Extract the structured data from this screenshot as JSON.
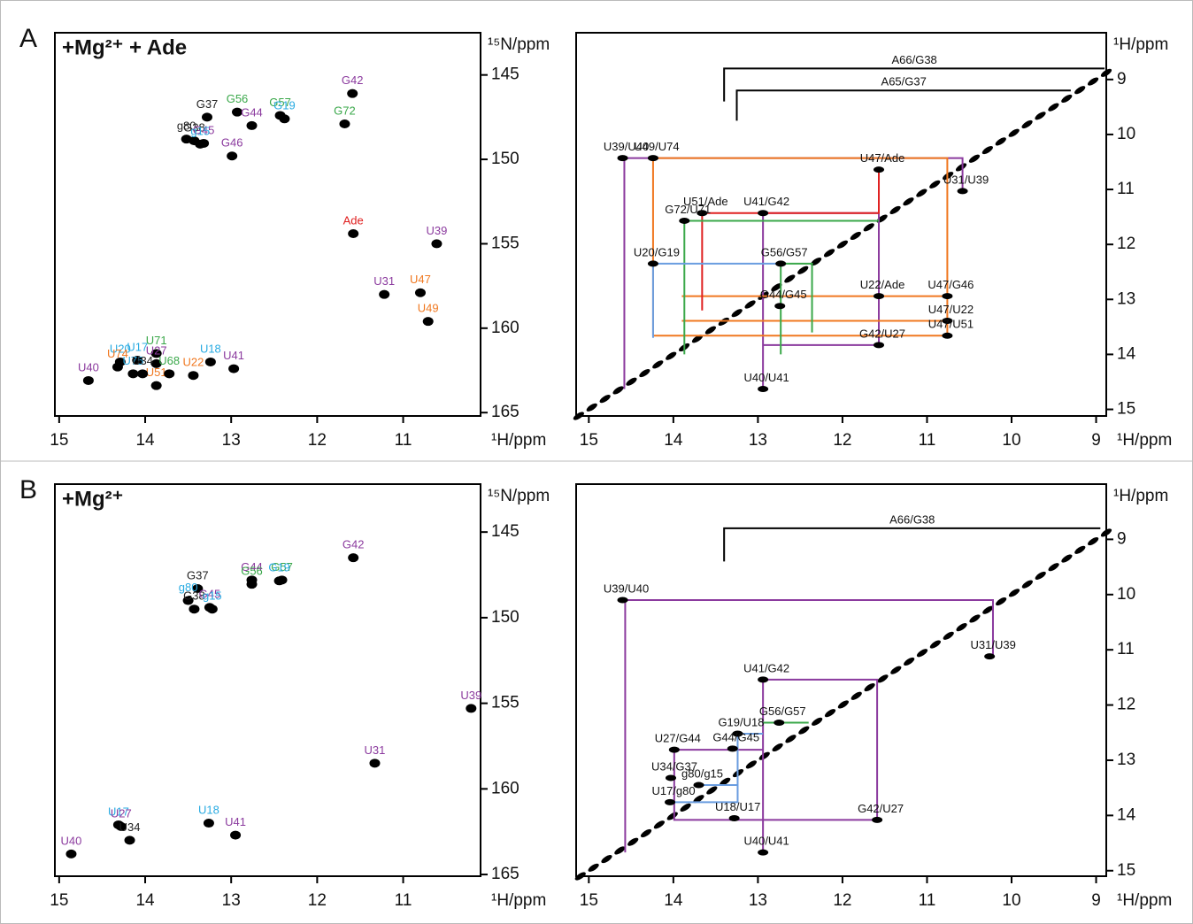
{
  "chart_data": [
    {
      "type": "hsqc",
      "panel": "A",
      "title": "+Mg²⁺ + Ade",
      "xlabel": "¹H/ppm",
      "ylabel": "¹⁵N/ppm",
      "xlim": [
        15.05,
        10.1
      ],
      "ylim": [
        142.5,
        165.2
      ],
      "xticks": [
        15,
        14,
        13,
        12,
        11
      ],
      "yticks": [
        145,
        150,
        155,
        160,
        165
      ],
      "peaks": [
        {
          "label": "G42",
          "color": "#8b3a9e",
          "x": 11.59,
          "y": 146.1
        },
        {
          "label": "G72",
          "color": "#3aa84a",
          "x": 11.68,
          "y": 147.9
        },
        {
          "label": "G56",
          "color": "#3aa84a",
          "x": 12.93,
          "y": 147.2
        },
        {
          "label": "G57",
          "color": "#3aa84a",
          "x": 12.43,
          "y": 147.4
        },
        {
          "label": "G44",
          "color": "#8b3a9e",
          "x": 12.76,
          "y": 148.0
        },
        {
          "label": "G19",
          "color": "#29abe2",
          "x": 12.38,
          "y": 147.6
        },
        {
          "label": "G37",
          "color": "#222222",
          "x": 13.28,
          "y": 147.5
        },
        {
          "label": "g80",
          "color": "#222222",
          "x": 13.52,
          "y": 148.8
        },
        {
          "label": "G38",
          "color": "#222222",
          "x": 13.43,
          "y": 148.9
        },
        {
          "label": "G45",
          "color": "#8b3a9e",
          "x": 13.32,
          "y": 149.05
        },
        {
          "label": "g15",
          "color": "#29abe2",
          "x": 13.36,
          "y": 149.1
        },
        {
          "label": "G46",
          "color": "#8b3a9e",
          "x": 12.99,
          "y": 149.8
        },
        {
          "label": "Ade",
          "color": "#e02020",
          "x": 11.58,
          "y": 154.4
        },
        {
          "label": "U39",
          "color": "#8b3a9e",
          "x": 10.61,
          "y": 155.0
        },
        {
          "label": "U31",
          "color": "#8b3a9e",
          "x": 11.22,
          "y": 158.0
        },
        {
          "label": "U47",
          "color": "#f07820",
          "x": 10.8,
          "y": 157.9
        },
        {
          "label": "U49",
          "color": "#f07820",
          "x": 10.71,
          "y": 159.6
        },
        {
          "label": "U20",
          "color": "#29abe2",
          "x": 14.29,
          "y": 162.0
        },
        {
          "label": "U17",
          "color": "#29abe2",
          "x": 14.09,
          "y": 161.9
        },
        {
          "label": "U71",
          "color": "#3aa84a",
          "x": 13.87,
          "y": 161.5
        },
        {
          "label": "U18",
          "color": "#29abe2",
          "x": 13.24,
          "y": 162.0
        },
        {
          "label": "U41",
          "color": "#8b3a9e",
          "x": 12.97,
          "y": 162.4
        },
        {
          "label": "U27",
          "color": "#8b3a9e",
          "x": 13.87,
          "y": 162.1
        },
        {
          "label": "U74",
          "color": "#f07820",
          "x": 14.32,
          "y": 162.3
        },
        {
          "label": "U75",
          "color": "#29abe2",
          "x": 14.14,
          "y": 162.7
        },
        {
          "label": "U51",
          "color": "#f07820",
          "x": 13.87,
          "y": 163.4
        },
        {
          "label": "U22",
          "color": "#f07820",
          "x": 13.44,
          "y": 162.8
        },
        {
          "label": "U34",
          "color": "#222222",
          "x": 14.03,
          "y": 162.7
        },
        {
          "label": "U68",
          "color": "#3aa84a",
          "x": 13.72,
          "y": 162.7
        },
        {
          "label": "U40",
          "color": "#8b3a9e",
          "x": 14.66,
          "y": 163.1
        }
      ]
    },
    {
      "type": "noesy",
      "xlabel": "¹H/ppm",
      "ylabel": "¹H/ppm",
      "xlim": [
        15.15,
        8.88
      ],
      "ylim": [
        8.15,
        15.12
      ],
      "xticks": [
        15,
        14,
        13,
        12,
        11,
        10,
        9
      ],
      "yticks": [
        9,
        10,
        11,
        12,
        13,
        14,
        15
      ],
      "walks": [
        {
          "name": "A66/G38",
          "color": "#000000",
          "x": [
            13.4,
            13.4,
            8.9
          ],
          "y": [
            9.4,
            8.8,
            8.8
          ]
        },
        {
          "name": "A65/G37",
          "color": "#000000",
          "x": [
            13.25,
            13.25,
            9.3
          ],
          "y": [
            9.75,
            9.2,
            9.2
          ]
        },
        {
          "color": "#8b3a9e",
          "x": [
            14.58,
            14.58,
            10.58,
            10.58
          ],
          "y": [
            14.63,
            10.43,
            10.43,
            11.03
          ]
        },
        {
          "color": "#8b3a9e",
          "x": [
            12.94,
            12.94,
            11.57,
            11.57,
            12.94
          ],
          "y": [
            14.63,
            11.43,
            11.43,
            13.83,
            13.83
          ]
        },
        {
          "color": "#f07820",
          "x": [
            14.24,
            14.24,
            10.76,
            10.76
          ],
          "y": [
            13.66,
            10.43,
            10.43,
            13.66
          ]
        },
        {
          "color": "#f07820",
          "x": [
            13.9,
            10.76
          ],
          "y": [
            12.94,
            12.94
          ]
        },
        {
          "color": "#f07820",
          "x": [
            13.9,
            10.76
          ],
          "y": [
            13.39,
            13.39
          ]
        },
        {
          "color": "#f07820",
          "x": [
            14.24,
            10.76
          ],
          "y": [
            13.66,
            13.66
          ]
        },
        {
          "color": "#e02020",
          "x": [
            13.66,
            13.66,
            11.57,
            11.57
          ],
          "y": [
            13.2,
            11.43,
            11.43,
            10.64
          ]
        },
        {
          "color": "#3aa84a",
          "x": [
            13.87,
            13.87,
            11.57
          ],
          "y": [
            14.0,
            11.57,
            11.57
          ]
        },
        {
          "color": "#3aa84a",
          "x": [
            12.73,
            12.73,
            12.36,
            12.36
          ],
          "y": [
            14.0,
            12.35,
            12.35,
            13.6
          ]
        },
        {
          "color": "#6a9de0",
          "x": [
            14.24,
            14.24,
            12.73
          ],
          "y": [
            13.7,
            12.35,
            12.35
          ]
        }
      ],
      "crosspeaks": [
        {
          "label": "U39/U40",
          "x": 14.6,
          "y": 10.43
        },
        {
          "label": "U49/U74",
          "x": 14.24,
          "y": 10.43
        },
        {
          "label": "U47/Ade",
          "x": 11.57,
          "y": 10.64
        },
        {
          "label": "U31/U39",
          "x": 10.58,
          "y": 11.03
        },
        {
          "label": "U51/Ade",
          "x": 13.66,
          "y": 11.43
        },
        {
          "label": "U41/G42",
          "x": 12.94,
          "y": 11.43
        },
        {
          "label": "G72/U71",
          "x": 13.87,
          "y": 11.57
        },
        {
          "label": "U20/G19",
          "x": 14.24,
          "y": 12.35
        },
        {
          "label": "G56/G57",
          "x": 12.73,
          "y": 12.35
        },
        {
          "label": "U22/Ade",
          "x": 11.57,
          "y": 12.94
        },
        {
          "label": "U47/G46",
          "x": 10.76,
          "y": 12.94
        },
        {
          "label": "U47/U22",
          "x": 10.76,
          "y": 13.39
        },
        {
          "label": "U47/U51",
          "x": 10.76,
          "y": 13.66
        },
        {
          "label": "G44/G45",
          "x": 12.74,
          "y": 13.12
        },
        {
          "label": "G42/U27",
          "x": 11.57,
          "y": 13.83
        },
        {
          "label": "U40/U41",
          "x": 12.94,
          "y": 14.63
        }
      ]
    },
    {
      "type": "hsqc",
      "panel": "B",
      "title": "+Mg²⁺",
      "xlabel": "¹H/ppm",
      "ylabel": "¹⁵N/ppm",
      "xlim": [
        15.05,
        10.1
      ],
      "ylim": [
        142.2,
        165.1
      ],
      "xticks": [
        15,
        14,
        13,
        12,
        11
      ],
      "yticks": [
        145,
        150,
        155,
        160,
        165
      ],
      "peaks": [
        {
          "label": "G42",
          "color": "#8b3a9e",
          "x": 11.58,
          "y": 146.5
        },
        {
          "label": "G44",
          "color": "#8b3a9e",
          "x": 12.76,
          "y": 147.8
        },
        {
          "label": "G57",
          "color": "#3aa84a",
          "x": 12.41,
          "y": 147.8
        },
        {
          "label": "G37",
          "color": "#222222",
          "x": 13.39,
          "y": 148.3
        },
        {
          "label": "g80",
          "color": "#29abe2",
          "x": 13.5,
          "y": 149.0
        },
        {
          "label": "G38",
          "color": "#222222",
          "x": 13.43,
          "y": 149.5
        },
        {
          "label": "G45",
          "color": "#8b3a9e",
          "x": 13.25,
          "y": 149.4
        },
        {
          "label": "g15",
          "color": "#29abe2",
          "x": 13.22,
          "y": 149.5
        },
        {
          "label": "G56",
          "color": "#3aa84a",
          "x": 12.76,
          "y": 148.05
        },
        {
          "label": "G19",
          "color": "#29abe2",
          "x": 12.44,
          "y": 147.85
        },
        {
          "label": "U39",
          "color": "#8b3a9e",
          "x": 10.21,
          "y": 155.3
        },
        {
          "label": "U31",
          "color": "#8b3a9e",
          "x": 11.33,
          "y": 158.5
        },
        {
          "label": "U17",
          "color": "#29abe2",
          "x": 14.31,
          "y": 162.1
        },
        {
          "label": "U27",
          "color": "#8b3a9e",
          "x": 14.28,
          "y": 162.2
        },
        {
          "label": "U34",
          "color": "#222222",
          "x": 14.18,
          "y": 163.0
        },
        {
          "label": "U18",
          "color": "#29abe2",
          "x": 13.26,
          "y": 162.0
        },
        {
          "label": "U41",
          "color": "#8b3a9e",
          "x": 12.95,
          "y": 162.7
        },
        {
          "label": "U40",
          "color": "#8b3a9e",
          "x": 14.86,
          "y": 163.8
        }
      ]
    },
    {
      "type": "noesy",
      "xlabel": "¹H/ppm",
      "ylabel": "¹H/ppm",
      "xlim": [
        15.15,
        8.88
      ],
      "ylim": [
        8.0,
        15.1
      ],
      "xticks": [
        15,
        14,
        13,
        12,
        11,
        10,
        9
      ],
      "yticks": [
        9,
        10,
        11,
        12,
        13,
        14,
        15
      ],
      "walks": [
        {
          "name": "A66/G38",
          "color": "#000000",
          "x": [
            13.4,
            13.4,
            8.95
          ],
          "y": [
            9.4,
            8.8,
            8.8
          ]
        },
        {
          "color": "#8b3a9e",
          "x": [
            14.57,
            14.57,
            10.22,
            10.22
          ],
          "y": [
            14.67,
            10.1,
            10.1,
            11.12
          ]
        },
        {
          "color": "#8b3a9e",
          "x": [
            12.94,
            12.94,
            11.59,
            11.59,
            13.99,
            13.99
          ],
          "y": [
            14.67,
            11.54,
            11.54,
            14.08,
            14.08,
            12.81
          ]
        },
        {
          "color": "#8b3a9e",
          "x": [
            13.99,
            12.94
          ],
          "y": [
            12.81,
            12.81
          ]
        },
        {
          "color": "#3aa84a",
          "x": [
            12.94,
            12.4
          ],
          "y": [
            12.32,
            12.32
          ]
        },
        {
          "color": "#6a9de0",
          "x": [
            13.99,
            13.24,
            13.24,
            12.94
          ],
          "y": [
            13.76,
            13.76,
            12.52,
            12.52
          ]
        },
        {
          "color": "#6a9de0",
          "x": [
            13.7,
            13.24
          ],
          "y": [
            13.45,
            13.45
          ]
        }
      ],
      "crosspeaks": [
        {
          "label": "U39/U40",
          "x": 14.6,
          "y": 10.1
        },
        {
          "label": "U31/U39",
          "x": 10.26,
          "y": 11.12
        },
        {
          "label": "U41/G42",
          "x": 12.94,
          "y": 11.54
        },
        {
          "label": "G56/G57",
          "x": 12.75,
          "y": 12.32
        },
        {
          "label": "G19/U18",
          "x": 13.24,
          "y": 12.52
        },
        {
          "label": "G44/G45",
          "x": 13.3,
          "y": 12.79
        },
        {
          "label": "U27/G44",
          "x": 13.99,
          "y": 12.81
        },
        {
          "label": "U34/G37",
          "x": 14.03,
          "y": 13.32
        },
        {
          "label": "g80/g15",
          "x": 13.7,
          "y": 13.45
        },
        {
          "label": "U17/g80",
          "x": 14.04,
          "y": 13.76
        },
        {
          "label": "G42/U27",
          "x": 11.59,
          "y": 14.08
        },
        {
          "label": "U18/U17",
          "x": 13.28,
          "y": 14.05
        },
        {
          "label": "U40/U41",
          "x": 12.94,
          "y": 14.67
        }
      ]
    }
  ]
}
